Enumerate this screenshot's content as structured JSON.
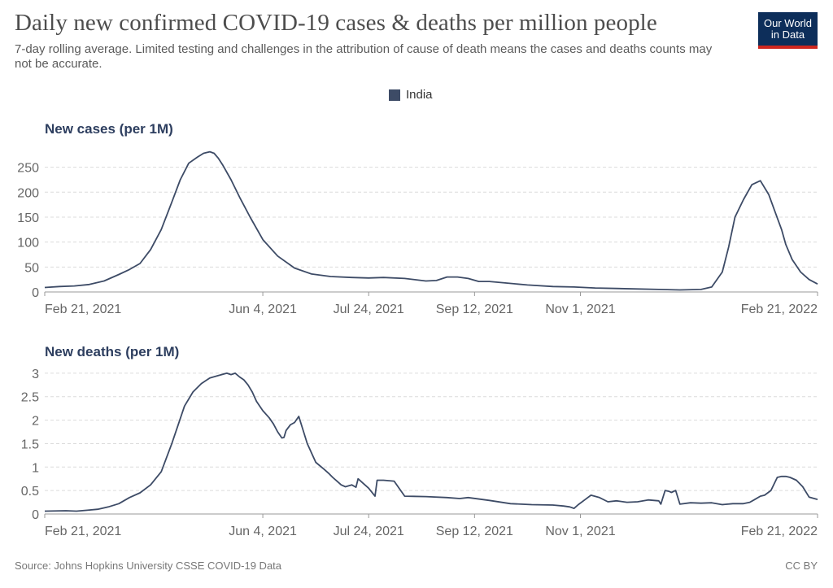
{
  "header": {
    "title": "Daily new confirmed COVID-19 cases & deaths per million people",
    "subtitle": "7-day rolling average. Limited testing and challenges in the attribution of cause of death means the cases and deaths counts may not be accurate.",
    "logo_line1": "Our World",
    "logo_line2": "in Data"
  },
  "legend": {
    "label": "India",
    "color": "#3d4b66"
  },
  "footer": {
    "source": "Source: Johns Hopkins University CSSE COVID-19 Data",
    "license": "CC BY"
  },
  "chart_data": [
    {
      "type": "line",
      "title": "New cases (per 1M)",
      "x_ticks": [
        "Feb 21, 2021",
        "Jun 4, 2021",
        "Jul 24, 2021",
        "Sep 12, 2021",
        "Nov 1, 2021",
        "Feb 21, 2022"
      ],
      "x_tick_days": [
        0,
        103,
        153,
        203,
        253,
        365
      ],
      "y_ticks": [
        0,
        50,
        100,
        150,
        200,
        250
      ],
      "ylim": [
        0,
        282
      ],
      "series": [
        {
          "name": "India",
          "color": "#3d4b66",
          "x": [
            0,
            7,
            14,
            21,
            28,
            35,
            40,
            45,
            50,
            55,
            60,
            64,
            68,
            72,
            75,
            78,
            80,
            82,
            84,
            88,
            92,
            97,
            103,
            110,
            118,
            126,
            135,
            145,
            153,
            160,
            170,
            180,
            185,
            190,
            195,
            200,
            205,
            210,
            218,
            228,
            240,
            250,
            260,
            270,
            280,
            290,
            300,
            310,
            315,
            320,
            323,
            326,
            330,
            334,
            338,
            342,
            345,
            348,
            350,
            353,
            357,
            361,
            365
          ],
          "y": [
            9,
            11,
            12,
            15,
            22,
            35,
            45,
            57,
            85,
            125,
            180,
            225,
            258,
            270,
            278,
            281,
            278,
            268,
            255,
            225,
            190,
            150,
            105,
            72,
            48,
            36,
            31,
            29,
            28,
            29,
            27,
            22,
            23,
            30,
            30,
            27,
            21,
            21,
            18,
            14,
            11,
            10,
            8,
            7,
            6,
            5,
            4,
            5,
            10,
            40,
            90,
            150,
            185,
            215,
            223,
            195,
            160,
            125,
            95,
            65,
            40,
            25,
            16
          ]
        }
      ]
    },
    {
      "type": "line",
      "title": "New deaths (per 1M)",
      "x_ticks": [
        "Feb 21, 2021",
        "Jun 4, 2021",
        "Jul 24, 2021",
        "Sep 12, 2021",
        "Nov 1, 2021",
        "Feb 21, 2022"
      ],
      "x_tick_days": [
        0,
        103,
        153,
        203,
        253,
        365
      ],
      "y_ticks": [
        0,
        0.5,
        1,
        1.5,
        2,
        2.5,
        3
      ],
      "y_tick_labels": [
        "0",
        "0.5",
        "1",
        "1.5",
        "2",
        "2.5",
        "3"
      ],
      "ylim": [
        0,
        3.05
      ],
      "series": [
        {
          "name": "India",
          "color": "#3d4b66",
          "x": [
            0,
            10,
            15,
            20,
            25,
            30,
            35,
            40,
            45,
            50,
            55,
            60,
            63,
            66,
            70,
            74,
            78,
            82,
            86,
            88,
            90,
            92,
            94,
            96,
            98,
            100,
            103,
            106,
            108,
            110,
            112,
            113,
            114,
            116,
            118,
            120,
            124,
            128,
            132,
            134,
            136,
            138,
            140,
            142,
            145,
            147,
            148,
            153,
            156,
            157,
            160,
            165,
            170,
            180,
            190,
            196,
            200,
            210,
            220,
            230,
            240,
            245,
            248,
            250,
            252,
            255,
            258,
            262,
            266,
            270,
            275,
            280,
            285,
            290,
            291,
            293,
            295,
            296,
            298,
            300,
            305,
            310,
            315,
            320,
            325,
            330,
            333,
            335,
            338,
            340,
            343,
            346,
            348,
            350,
            352,
            355,
            358,
            361,
            365
          ],
          "y": [
            0.06,
            0.07,
            0.06,
            0.08,
            0.1,
            0.15,
            0.22,
            0.35,
            0.45,
            0.62,
            0.9,
            1.5,
            1.9,
            2.3,
            2.6,
            2.78,
            2.9,
            2.95,
            3.0,
            2.97,
            3.0,
            2.92,
            2.86,
            2.75,
            2.6,
            2.4,
            2.2,
            2.05,
            1.92,
            1.75,
            1.62,
            1.63,
            1.78,
            1.9,
            1.95,
            2.08,
            1.5,
            1.1,
            0.95,
            0.87,
            0.78,
            0.7,
            0.62,
            0.58,
            0.62,
            0.57,
            0.75,
            0.55,
            0.38,
            0.72,
            0.72,
            0.7,
            0.38,
            0.37,
            0.35,
            0.33,
            0.35,
            0.29,
            0.22,
            0.2,
            0.19,
            0.17,
            0.15,
            0.12,
            0.2,
            0.3,
            0.4,
            0.35,
            0.26,
            0.28,
            0.25,
            0.26,
            0.3,
            0.28,
            0.21,
            0.5,
            0.48,
            0.46,
            0.5,
            0.21,
            0.24,
            0.23,
            0.24,
            0.2,
            0.22,
            0.22,
            0.25,
            0.3,
            0.38,
            0.4,
            0.5,
            0.78,
            0.8,
            0.8,
            0.78,
            0.72,
            0.58,
            0.36,
            0.31
          ]
        }
      ]
    }
  ]
}
